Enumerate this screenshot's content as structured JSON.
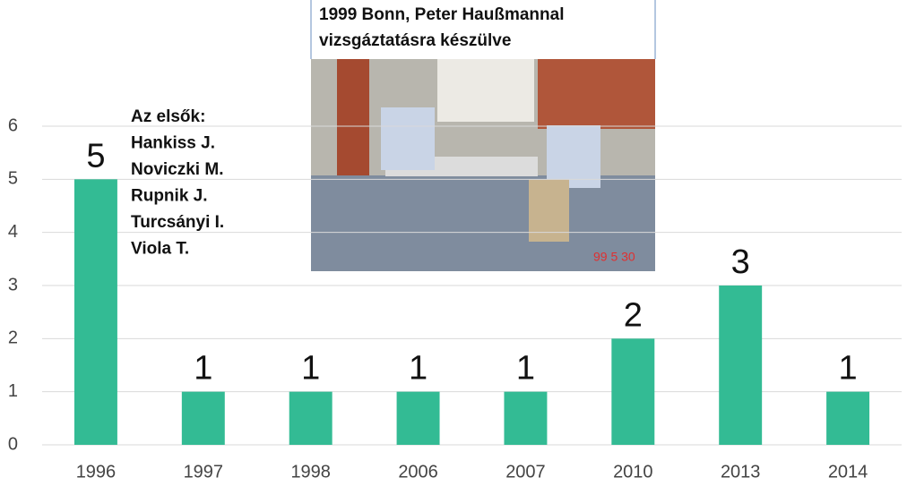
{
  "chart_data": {
    "type": "bar",
    "categories": [
      "1996",
      "1997",
      "1998",
      "2006",
      "2007",
      "2010",
      "2013",
      "2014"
    ],
    "values": [
      5,
      1,
      1,
      1,
      1,
      2,
      3,
      1
    ],
    "color": "#33bb94",
    "ylim": [
      0,
      6
    ],
    "yticks": [
      0,
      1,
      2,
      3,
      4,
      5,
      6
    ],
    "grid": true,
    "caption": [
      "1999 Bonn, Peter Haußmannal",
      "vizsgáztatásra készülve"
    ],
    "note": [
      "Az elsők:",
      "Hankiss J.",
      "Noviczki M.",
      "Rupnik J.",
      "Turcsányi I.",
      "Viola T."
    ],
    "photo_stamp": "99 5 30"
  }
}
